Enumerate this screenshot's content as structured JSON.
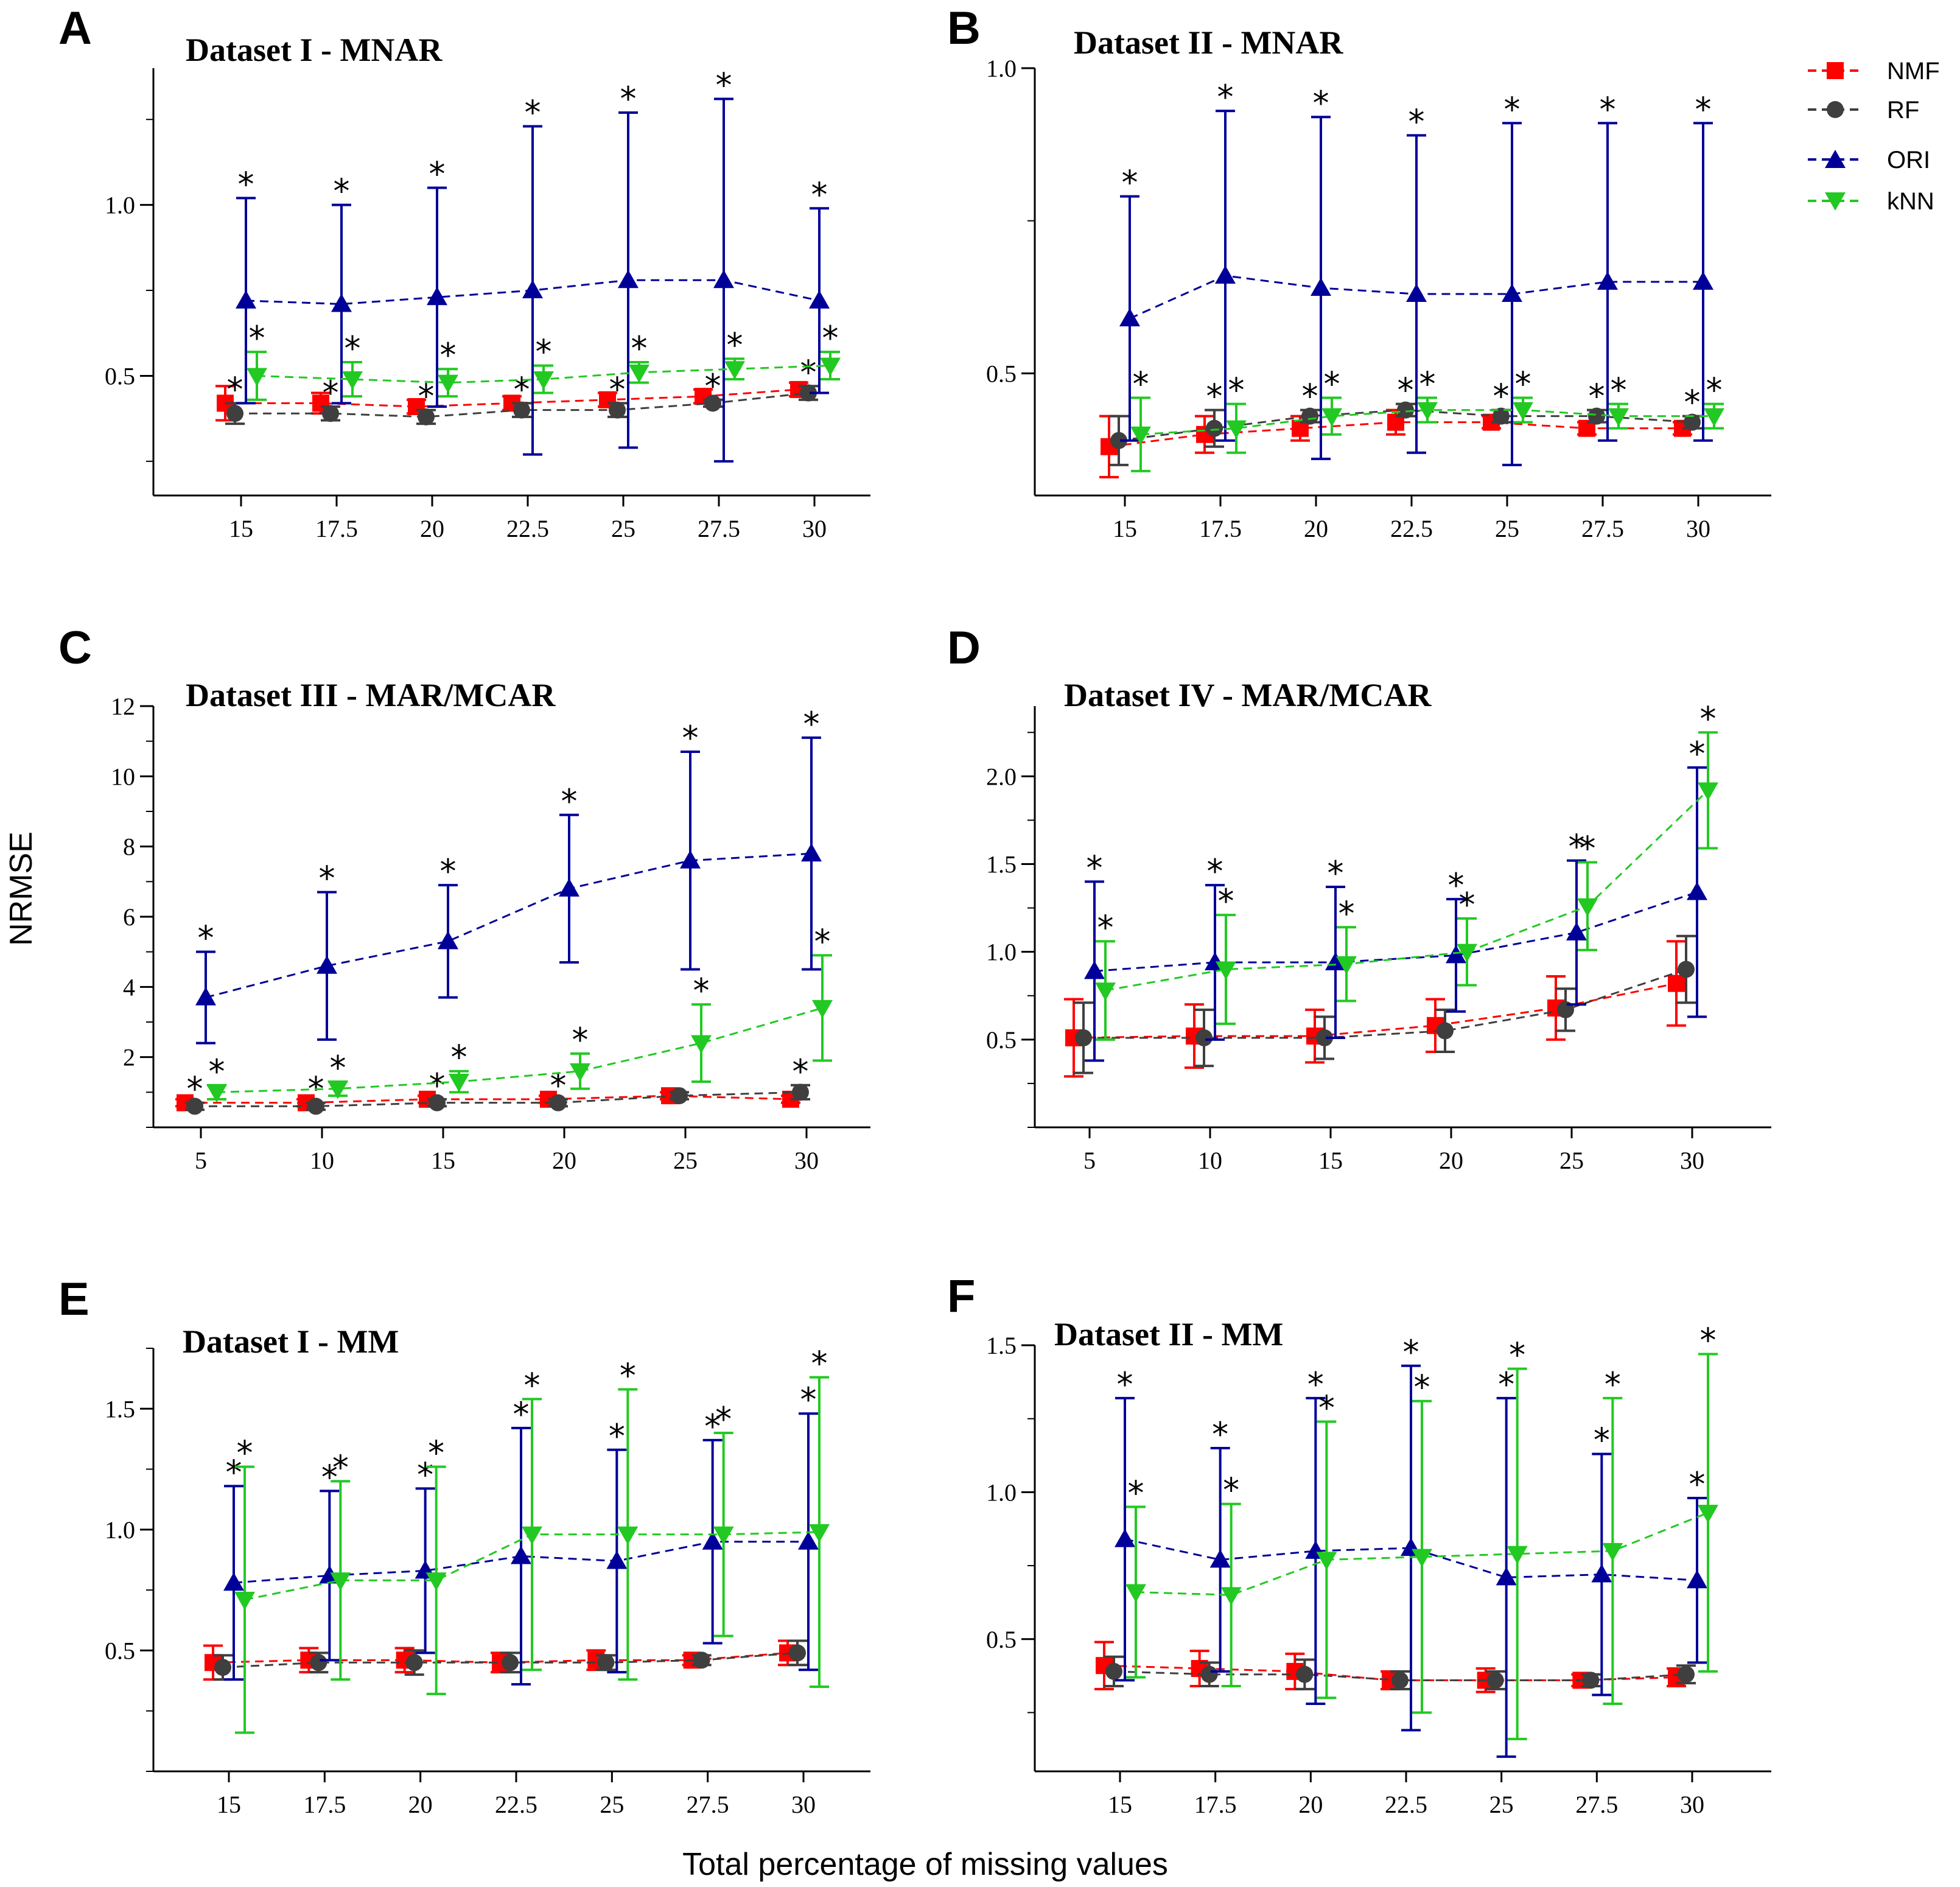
{
  "figure": {
    "ylabel": "NRMSE",
    "xlabel": "Total percentage of missing values"
  },
  "legend": {
    "items": [
      {
        "name": "NMF",
        "color": "#ff0000",
        "marker": "square"
      },
      {
        "name": "RF",
        "color": "#3f3f3f",
        "marker": "circle"
      },
      {
        "name": "ORI",
        "color": "#000099",
        "marker": "triangle-up"
      },
      {
        "name": "kNN",
        "color": "#22c922",
        "marker": "triangle-down"
      }
    ]
  },
  "chart_data": [
    {
      "panel": "A",
      "type": "line",
      "title": "Dataset  I - MNAR",
      "x": [
        "15",
        "17.5",
        "20",
        "22.5",
        "25",
        "27.5",
        "30"
      ],
      "ylim": [
        0.15,
        1.4
      ],
      "yticks": [
        "0.5",
        "1.0"
      ],
      "yticks_v": [
        0.5,
        1.0
      ],
      "series": [
        {
          "name": "NMF",
          "values": [
            0.42,
            0.42,
            0.41,
            0.42,
            0.43,
            0.44,
            0.46
          ],
          "err": [
            0.05,
            0.03,
            0.02,
            0.02,
            0.02,
            0.02,
            0.02
          ],
          "stars": [
            0,
            0,
            0,
            0,
            0,
            0,
            0
          ]
        },
        {
          "name": "RF",
          "values": [
            0.39,
            0.39,
            0.38,
            0.4,
            0.4,
            0.42,
            0.45
          ],
          "err": [
            0.03,
            0.02,
            0.02,
            0.02,
            0.02,
            0.01,
            0.02
          ],
          "stars": [
            1,
            1,
            1,
            1,
            1,
            1,
            1
          ]
        },
        {
          "name": "ORI",
          "values": [
            0.72,
            0.71,
            0.73,
            0.75,
            0.78,
            0.78,
            0.72
          ],
          "err": [
            0.3,
            0.29,
            0.32,
            0.48,
            0.49,
            0.53,
            0.27
          ],
          "stars": [
            1,
            1,
            1,
            1,
            1,
            1,
            1
          ]
        },
        {
          "name": "kNN",
          "values": [
            0.5,
            0.49,
            0.48,
            0.49,
            0.51,
            0.52,
            0.53
          ],
          "err": [
            0.07,
            0.05,
            0.04,
            0.04,
            0.03,
            0.03,
            0.04
          ],
          "stars": [
            1,
            1,
            1,
            1,
            1,
            1,
            1
          ]
        }
      ]
    },
    {
      "panel": "B",
      "type": "line",
      "title": "Dataset II - MNAR",
      "x": [
        "15",
        "17.5",
        "20",
        "22.5",
        "25",
        "27.5",
        "30"
      ],
      "ylim": [
        0.3,
        1.0
      ],
      "yticks": [
        "0.5",
        "1.0"
      ],
      "yticks_v": [
        0.5,
        1.0
      ],
      "series": [
        {
          "name": "NMF",
          "values": [
            0.38,
            0.4,
            0.41,
            0.42,
            0.42,
            0.41,
            0.41
          ],
          "err": [
            0.05,
            0.03,
            0.02,
            0.02,
            0.01,
            0.01,
            0.01
          ],
          "stars": [
            0,
            0,
            0,
            0,
            0,
            0,
            0
          ]
        },
        {
          "name": "RF",
          "values": [
            0.39,
            0.41,
            0.43,
            0.44,
            0.43,
            0.43,
            0.42
          ],
          "err": [
            0.04,
            0.03,
            0.01,
            0.01,
            0.01,
            0.01,
            0.01
          ],
          "stars": [
            0,
            1,
            1,
            1,
            1,
            1,
            1
          ]
        },
        {
          "name": "ORI",
          "values": [
            0.59,
            0.66,
            0.64,
            0.63,
            0.63,
            0.65,
            0.65
          ],
          "err": [
            0.2,
            0.27,
            0.28,
            0.26,
            0.28,
            0.26,
            0.26
          ],
          "stars": [
            1,
            1,
            1,
            1,
            1,
            1,
            1
          ]
        },
        {
          "name": "kNN",
          "values": [
            0.4,
            0.41,
            0.43,
            0.44,
            0.44,
            0.43,
            0.43
          ],
          "err": [
            0.06,
            0.04,
            0.03,
            0.02,
            0.02,
            0.02,
            0.02
          ],
          "stars": [
            1,
            1,
            1,
            1,
            1,
            1,
            1
          ]
        }
      ]
    },
    {
      "panel": "C",
      "type": "line",
      "title": "Dataset  III - MAR/MCAR",
      "x": [
        "5",
        "10",
        "15",
        "20",
        "25",
        "30"
      ],
      "ylim": [
        0,
        12
      ],
      "yticks": [
        "2",
        "4",
        "6",
        "8",
        "10",
        "12"
      ],
      "yticks_v": [
        2,
        4,
        6,
        8,
        10,
        12
      ],
      "series": [
        {
          "name": "NMF",
          "values": [
            0.7,
            0.7,
            0.8,
            0.8,
            0.9,
            0.8
          ],
          "err": [
            0.1,
            0.1,
            0.1,
            0.1,
            0.1,
            0.1
          ],
          "stars": [
            0,
            0,
            0,
            0,
            0,
            0
          ]
        },
        {
          "name": "RF",
          "values": [
            0.6,
            0.6,
            0.7,
            0.7,
            0.9,
            1.0
          ],
          "err": [
            0.1,
            0.1,
            0.1,
            0.1,
            0.1,
            0.2
          ],
          "stars": [
            1,
            1,
            1,
            1,
            0,
            1
          ]
        },
        {
          "name": "ORI",
          "values": [
            3.7,
            4.6,
            5.3,
            6.8,
            7.6,
            7.8
          ],
          "err": [
            1.3,
            2.1,
            1.6,
            2.1,
            3.1,
            3.3
          ],
          "stars": [
            1,
            1,
            1,
            1,
            1,
            1
          ]
        },
        {
          "name": "kNN",
          "values": [
            1.0,
            1.1,
            1.3,
            1.6,
            2.4,
            3.4
          ],
          "err": [
            0.2,
            0.2,
            0.3,
            0.5,
            1.1,
            1.5
          ],
          "stars": [
            1,
            1,
            1,
            1,
            1,
            1
          ]
        }
      ]
    },
    {
      "panel": "D",
      "type": "line",
      "title": "Dataset  IV - MAR/MCAR",
      "x": [
        "5",
        "10",
        "15",
        "20",
        "25",
        "30"
      ],
      "ylim": [
        0,
        2.4
      ],
      "yticks": [
        "0.5",
        "1.0",
        "1.5",
        "2.0"
      ],
      "yticks_v": [
        0.5,
        1.0,
        1.5,
        2.0
      ],
      "series": [
        {
          "name": "NMF",
          "values": [
            0.51,
            0.52,
            0.52,
            0.58,
            0.68,
            0.82
          ],
          "err": [
            0.22,
            0.18,
            0.15,
            0.15,
            0.18,
            0.24
          ],
          "stars": [
            0,
            0,
            0,
            0,
            0,
            0
          ]
        },
        {
          "name": "RF",
          "values": [
            0.51,
            0.51,
            0.51,
            0.55,
            0.67,
            0.9
          ],
          "err": [
            0.2,
            0.16,
            0.12,
            0.12,
            0.12,
            0.19
          ],
          "stars": [
            0,
            0,
            0,
            0,
            0,
            0
          ]
        },
        {
          "name": "ORI",
          "values": [
            0.89,
            0.94,
            0.94,
            0.98,
            1.11,
            1.34
          ],
          "err": [
            0.51,
            0.44,
            0.43,
            0.32,
            0.41,
            0.71
          ],
          "stars": [
            1,
            1,
            1,
            1,
            1,
            1
          ]
        },
        {
          "name": "kNN",
          "values": [
            0.78,
            0.9,
            0.93,
            1.0,
            1.26,
            1.92
          ],
          "err": [
            0.28,
            0.31,
            0.21,
            0.19,
            0.25,
            0.33
          ],
          "stars": [
            1,
            1,
            1,
            1,
            1,
            1
          ]
        }
      ]
    },
    {
      "panel": "E",
      "type": "line",
      "title": "Dataset  I - MM",
      "x": [
        "15",
        "17.5",
        "20",
        "22.5",
        "25",
        "27.5",
        "30"
      ],
      "ylim": [
        0.0,
        1.75
      ],
      "yticks": [
        "0.5",
        "1.0",
        "1.5"
      ],
      "yticks_v": [
        0.5,
        1.0,
        1.5
      ],
      "series": [
        {
          "name": "NMF",
          "values": [
            0.45,
            0.46,
            0.46,
            0.45,
            0.46,
            0.46,
            0.49
          ],
          "err": [
            0.07,
            0.05,
            0.05,
            0.04,
            0.04,
            0.02,
            0.05
          ],
          "stars": [
            0,
            0,
            0,
            0,
            0,
            0,
            0
          ]
        },
        {
          "name": "RF",
          "values": [
            0.43,
            0.45,
            0.45,
            0.45,
            0.45,
            0.46,
            0.49
          ],
          "err": [
            0.05,
            0.04,
            0.05,
            0.04,
            0.03,
            0.02,
            0.05
          ],
          "stars": [
            0,
            0,
            0,
            0,
            0,
            0,
            0
          ]
        },
        {
          "name": "ORI",
          "values": [
            0.78,
            0.81,
            0.83,
            0.89,
            0.87,
            0.95,
            0.95
          ],
          "err": [
            0.4,
            0.35,
            0.34,
            0.53,
            0.46,
            0.42,
            0.53
          ],
          "stars": [
            1,
            1,
            1,
            1,
            1,
            1,
            1
          ]
        },
        {
          "name": "kNN",
          "values": [
            0.71,
            0.79,
            0.79,
            0.98,
            0.98,
            0.98,
            0.99
          ],
          "err": [
            0.55,
            0.41,
            0.47,
            0.56,
            0.6,
            0.42,
            0.64
          ],
          "stars": [
            1,
            1,
            1,
            1,
            1,
            1,
            1
          ]
        }
      ]
    },
    {
      "panel": "F",
      "type": "line",
      "title": "Dataset II - MM",
      "x": [
        "15",
        "17.5",
        "20",
        "22.5",
        "25",
        "27.5",
        "30"
      ],
      "ylim": [
        0.05,
        1.5
      ],
      "yticks": [
        "0.5",
        "1.0",
        "1.5"
      ],
      "yticks_v": [
        0.5,
        1.0,
        1.5
      ],
      "series": [
        {
          "name": "NMF",
          "values": [
            0.41,
            0.4,
            0.39,
            0.36,
            0.36,
            0.36,
            0.37
          ],
          "err": [
            0.08,
            0.06,
            0.06,
            0.03,
            0.04,
            0.02,
            0.03
          ],
          "stars": [
            0,
            0,
            0,
            0,
            0,
            0,
            0
          ]
        },
        {
          "name": "RF",
          "values": [
            0.39,
            0.38,
            0.38,
            0.36,
            0.36,
            0.36,
            0.38
          ],
          "err": [
            0.05,
            0.04,
            0.05,
            0.03,
            0.03,
            0.02,
            0.03
          ],
          "stars": [
            0,
            0,
            0,
            0,
            0,
            0,
            0
          ]
        },
        {
          "name": "ORI",
          "values": [
            0.84,
            0.77,
            0.8,
            0.81,
            0.71,
            0.72,
            0.7
          ],
          "err": [
            0.48,
            0.38,
            0.52,
            0.62,
            0.61,
            0.41,
            0.28
          ],
          "stars": [
            1,
            1,
            1,
            1,
            1,
            1,
            1
          ]
        },
        {
          "name": "kNN",
          "values": [
            0.66,
            0.65,
            0.77,
            0.78,
            0.79,
            0.8,
            0.93
          ],
          "err": [
            0.29,
            0.31,
            0.47,
            0.53,
            0.63,
            0.52,
            0.54
          ],
          "stars": [
            1,
            1,
            1,
            1,
            1,
            1,
            1
          ]
        }
      ]
    }
  ]
}
